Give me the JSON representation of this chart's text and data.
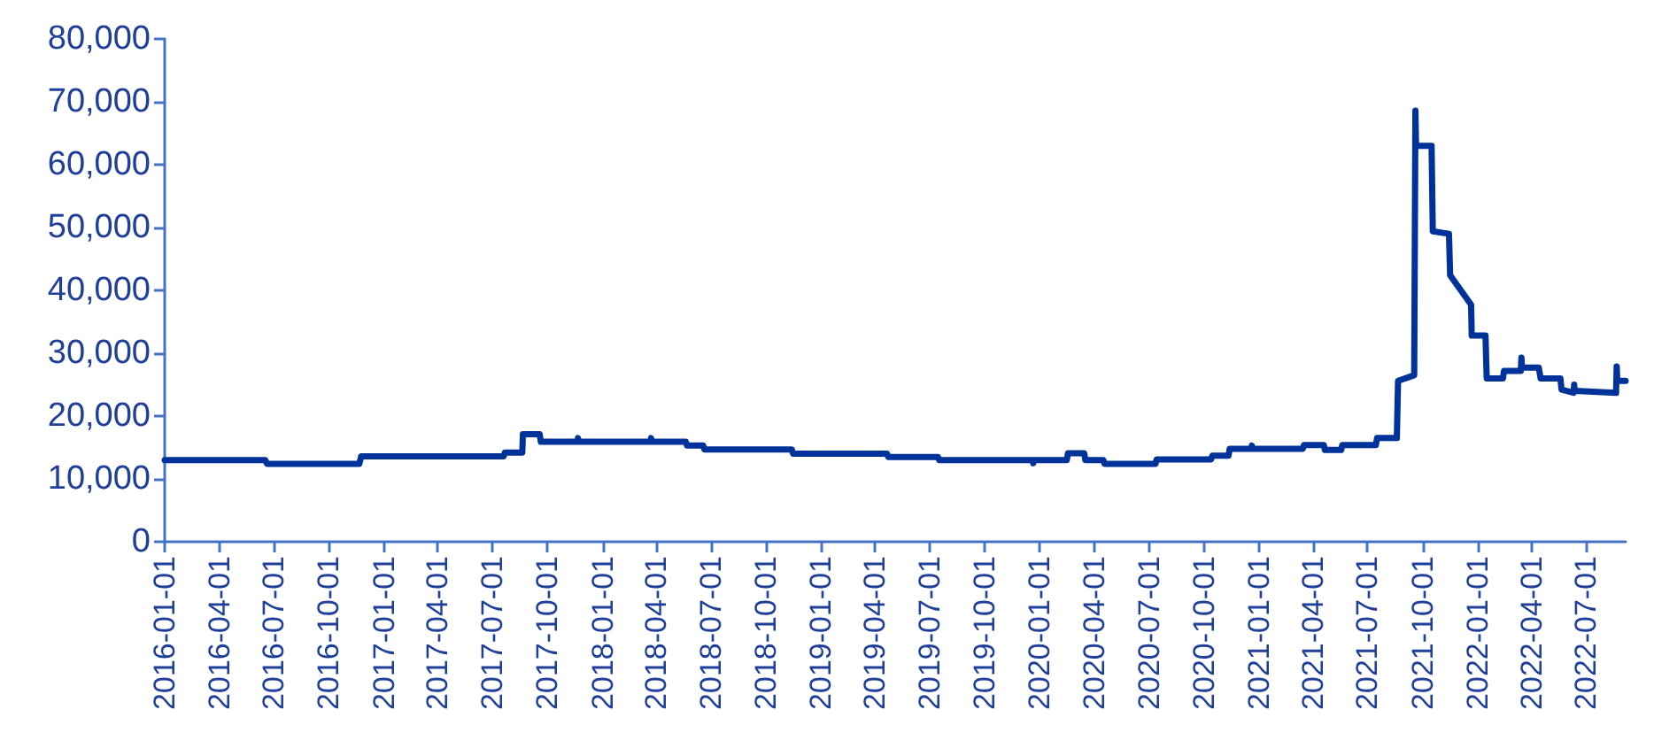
{
  "chart_data": {
    "type": "line",
    "xlim": [
      "2016-01-01",
      "2022-09-05"
    ],
    "xticks": [
      "2016-01-01",
      "2016-04-01",
      "2016-07-01",
      "2016-10-01",
      "2017-01-01",
      "2017-04-01",
      "2017-07-01",
      "2017-10-01",
      "2018-01-01",
      "2018-04-01",
      "2018-07-01",
      "2018-10-01",
      "2019-01-01",
      "2019-04-01",
      "2019-07-01",
      "2019-10-01",
      "2020-01-01",
      "2020-04-01",
      "2020-07-01",
      "2020-10-01",
      "2021-01-01",
      "2021-04-01",
      "2021-07-01",
      "2021-10-01",
      "2022-01-01",
      "2022-04-01",
      "2022-07-01"
    ],
    "ylim": [
      0,
      80000
    ],
    "yticks": [
      {
        "value": 0,
        "label": "0"
      },
      {
        "value": 10000,
        "label": "10,000"
      },
      {
        "value": 20000,
        "label": "20,000"
      },
      {
        "value": 30000,
        "label": "30,000"
      },
      {
        "value": 40000,
        "label": "40,000"
      },
      {
        "value": 50000,
        "label": "50,000"
      },
      {
        "value": 60000,
        "label": "60,000"
      },
      {
        "value": 70000,
        "label": "70,000"
      },
      {
        "value": 80000,
        "label": "80,000"
      }
    ],
    "grid": false,
    "marker": "none",
    "line_style": "solid",
    "series": [
      {
        "color": "#003399",
        "x": [
          "2016-01-01",
          "2016-06-17",
          "2016-06-20",
          "2016-11-21",
          "2016-11-24",
          "2017-07-20",
          "2017-07-22",
          "2017-08-20",
          "2017-08-21",
          "2017-09-18",
          "2017-09-20",
          "2017-11-20",
          "2017-11-21",
          "2017-11-22",
          "2018-03-22",
          "2018-03-23",
          "2018-03-24",
          "2018-05-20",
          "2018-05-22",
          "2018-06-18",
          "2018-06-20",
          "2018-11-13",
          "2018-11-15",
          "2019-04-21",
          "2019-04-23",
          "2019-07-15",
          "2019-07-17",
          "2019-12-20",
          "2019-12-21",
          "2019-12-22",
          "2020-02-15",
          "2020-02-17",
          "2020-03-15",
          "2020-03-17",
          "2020-04-16",
          "2020-04-18",
          "2020-07-12",
          "2020-07-14",
          "2020-10-13",
          "2020-10-15",
          "2020-11-11",
          "2020-11-13",
          "2020-12-19",
          "2020-12-20",
          "2020-12-21",
          "2021-03-15",
          "2021-03-17",
          "2021-04-19",
          "2021-04-21",
          "2021-05-18",
          "2021-05-20",
          "2021-07-15",
          "2021-07-17",
          "2021-08-19",
          "2021-08-21",
          "2021-09-17",
          "2021-09-19",
          "2021-09-20",
          "2021-10-16",
          "2021-10-18",
          "2021-11-14",
          "2021-11-16",
          "2021-12-21",
          "2021-12-22",
          "2022-01-14",
          "2022-01-16",
          "2022-02-12",
          "2022-02-14",
          "2022-03-14",
          "2022-03-15",
          "2022-03-16",
          "2022-04-13",
          "2022-04-16",
          "2022-05-19",
          "2022-05-21",
          "2022-06-10",
          "2022-06-11",
          "2022-06-12",
          "2022-08-20",
          "2022-08-21",
          "2022-08-22",
          "2022-09-05"
        ],
        "values": [
          13000,
          13000,
          12400,
          12400,
          13600,
          13600,
          14200,
          14200,
          17100,
          17100,
          15900,
          15900,
          16500,
          15900,
          15900,
          16500,
          15900,
          15900,
          15300,
          15300,
          14700,
          14700,
          14000,
          14000,
          13500,
          13500,
          13000,
          13000,
          12500,
          13000,
          13000,
          14100,
          14100,
          13000,
          13000,
          12400,
          12400,
          13100,
          13100,
          13700,
          13700,
          14800,
          14800,
          15300,
          14800,
          14800,
          15400,
          15400,
          14600,
          14600,
          15400,
          15400,
          16500,
          16500,
          25600,
          26500,
          68600,
          63000,
          63000,
          49400,
          49000,
          42400,
          37700,
          32800,
          32800,
          26000,
          26000,
          27200,
          27200,
          29300,
          27700,
          27700,
          26000,
          26000,
          24200,
          23700,
          25000,
          24000,
          23700,
          27900,
          25600,
          25600
        ]
      }
    ]
  }
}
